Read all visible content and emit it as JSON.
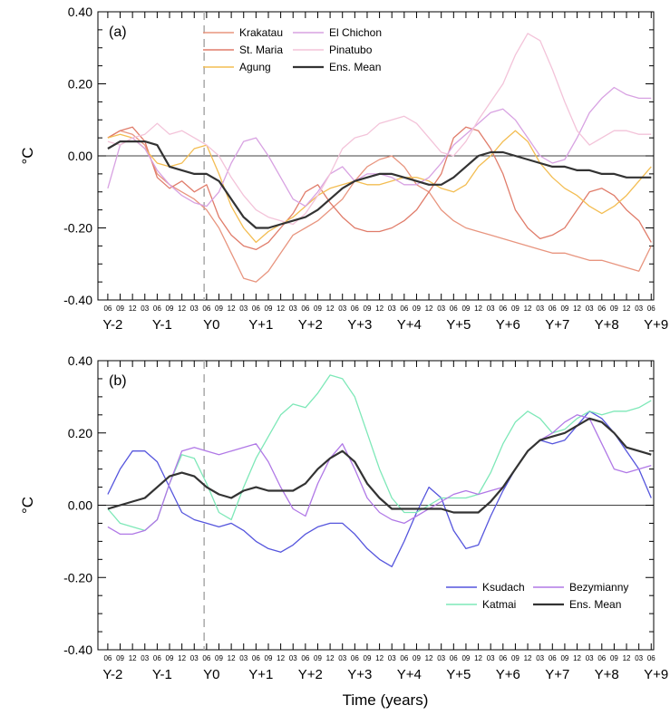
{
  "figure": {
    "xlabel": "Time (years)"
  },
  "chart_data": [
    {
      "type": "line",
      "panel_label": "(a)",
      "ylabel": "°C",
      "ylim": [
        -0.4,
        0.4
      ],
      "yticks": [
        -0.4,
        -0.2,
        0.0,
        0.2,
        0.4
      ],
      "ytick_labels": [
        "-0.40",
        "-0.20",
        "0.00",
        "0.20",
        "0.40"
      ],
      "xlim": [
        -2.2,
        9.05
      ],
      "year_labels": [
        "Y-2",
        "Y-1",
        "Y0",
        "Y+1",
        "Y+2",
        "Y+3",
        "Y+4",
        "Y+5",
        "Y+6",
        "Y+7",
        "Y+8",
        "Y+9"
      ],
      "month_tick_labels": [
        "03",
        "06",
        "09",
        "12"
      ],
      "eruption_line_x": -0.05,
      "zero_line": true,
      "legend": "top-center",
      "series": [
        {
          "name": "Krakatau",
          "color": "#e8957f",
          "x": [
            -2.0,
            -1.75,
            -1.5,
            -1.25,
            -1.0,
            -0.75,
            -0.5,
            -0.25,
            0.0,
            0.25,
            0.5,
            0.75,
            1.0,
            1.25,
            1.5,
            1.75,
            2.0,
            2.25,
            2.5,
            2.75,
            3.0,
            3.25,
            3.5,
            3.75,
            4.0,
            4.25,
            4.5,
            4.75,
            5.0,
            5.25,
            5.5,
            5.75,
            6.0,
            6.25,
            6.5,
            6.75,
            7.0,
            7.25,
            7.5,
            7.75,
            8.0,
            8.25,
            8.5,
            8.75,
            9.0
          ],
          "y": [
            0.05,
            0.07,
            0.06,
            0.03,
            -0.05,
            -0.08,
            -0.1,
            -0.12,
            -0.15,
            -0.2,
            -0.27,
            -0.34,
            -0.35,
            -0.32,
            -0.27,
            -0.22,
            -0.2,
            -0.18,
            -0.15,
            -0.12,
            -0.07,
            -0.03,
            -0.01,
            0.0,
            -0.03,
            -0.08,
            -0.1,
            -0.15,
            -0.18,
            -0.2,
            -0.21,
            -0.22,
            -0.23,
            -0.24,
            -0.25,
            -0.26,
            -0.27,
            -0.27,
            -0.28,
            -0.29,
            -0.29,
            -0.3,
            -0.31,
            -0.32,
            -0.25
          ]
        },
        {
          "name": "St. Maria",
          "color": "#e07c6a",
          "x": [
            -2.0,
            -1.75,
            -1.5,
            -1.25,
            -1.0,
            -0.75,
            -0.5,
            -0.25,
            0.0,
            0.25,
            0.5,
            0.75,
            1.0,
            1.25,
            1.5,
            1.75,
            2.0,
            2.25,
            2.5,
            2.75,
            3.0,
            3.25,
            3.5,
            3.75,
            4.0,
            4.25,
            4.5,
            4.75,
            5.0,
            5.25,
            5.5,
            5.75,
            6.0,
            6.25,
            6.5,
            6.75,
            7.0,
            7.25,
            7.5,
            7.75,
            8.0,
            8.25,
            8.5,
            8.75,
            9.0
          ],
          "y": [
            0.05,
            0.07,
            0.08,
            0.04,
            -0.06,
            -0.09,
            -0.07,
            -0.1,
            -0.08,
            -0.17,
            -0.22,
            -0.25,
            -0.26,
            -0.24,
            -0.2,
            -0.16,
            -0.1,
            -0.08,
            -0.13,
            -0.17,
            -0.2,
            -0.21,
            -0.21,
            -0.2,
            -0.18,
            -0.15,
            -0.1,
            -0.05,
            0.05,
            0.08,
            0.07,
            0.02,
            -0.05,
            -0.15,
            -0.2,
            -0.23,
            -0.22,
            -0.2,
            -0.15,
            -0.1,
            -0.09,
            -0.11,
            -0.15,
            -0.18,
            -0.24
          ]
        },
        {
          "name": "Agung",
          "color": "#f3bd52",
          "x": [
            -2.0,
            -1.75,
            -1.5,
            -1.25,
            -1.0,
            -0.75,
            -0.5,
            -0.25,
            0.0,
            0.25,
            0.5,
            0.75,
            1.0,
            1.25,
            1.5,
            1.75,
            2.0,
            2.25,
            2.5,
            2.75,
            3.0,
            3.25,
            3.5,
            3.75,
            4.0,
            4.25,
            4.5,
            4.75,
            5.0,
            5.25,
            5.5,
            5.75,
            6.0,
            6.25,
            6.5,
            6.75,
            7.0,
            7.25,
            7.5,
            7.75,
            8.0,
            8.25,
            8.5,
            8.75,
            9.0
          ],
          "y": [
            0.05,
            0.06,
            0.05,
            0.02,
            -0.02,
            -0.03,
            -0.02,
            0.02,
            0.03,
            -0.05,
            -0.14,
            -0.2,
            -0.24,
            -0.21,
            -0.19,
            -0.17,
            -0.14,
            -0.11,
            -0.09,
            -0.08,
            -0.07,
            -0.08,
            -0.08,
            -0.07,
            -0.06,
            -0.06,
            -0.07,
            -0.09,
            -0.1,
            -0.08,
            -0.03,
            0.0,
            0.04,
            0.07,
            0.04,
            -0.02,
            -0.06,
            -0.09,
            -0.11,
            -0.14,
            -0.16,
            -0.14,
            -0.11,
            -0.07,
            -0.03
          ]
        },
        {
          "name": "El Chichon",
          "color": "#d8a2e2",
          "x": [
            -2.0,
            -1.75,
            -1.5,
            -1.25,
            -1.0,
            -0.75,
            -0.5,
            -0.25,
            0.0,
            0.25,
            0.5,
            0.75,
            1.0,
            1.25,
            1.5,
            1.75,
            2.0,
            2.25,
            2.5,
            2.75,
            3.0,
            3.25,
            3.5,
            3.75,
            4.0,
            4.25,
            4.5,
            4.75,
            5.0,
            5.25,
            5.5,
            5.75,
            6.0,
            6.25,
            6.5,
            6.75,
            7.0,
            7.25,
            7.5,
            7.75,
            8.0,
            8.25,
            8.5,
            8.75,
            9.0
          ],
          "y": [
            -0.09,
            0.03,
            0.05,
            0.02,
            -0.04,
            -0.08,
            -0.11,
            -0.13,
            -0.14,
            -0.1,
            -0.02,
            0.04,
            0.05,
            0.0,
            -0.06,
            -0.12,
            -0.14,
            -0.1,
            -0.05,
            -0.03,
            -0.07,
            -0.05,
            -0.05,
            -0.06,
            -0.08,
            -0.08,
            -0.06,
            -0.02,
            0.03,
            0.06,
            0.09,
            0.12,
            0.13,
            0.1,
            0.05,
            0.0,
            -0.02,
            -0.01,
            0.05,
            0.12,
            0.16,
            0.19,
            0.17,
            0.16,
            0.16
          ]
        },
        {
          "name": "Pinatubo",
          "color": "#f3c3d9",
          "x": [
            -2.0,
            -1.75,
            -1.5,
            -1.25,
            -1.0,
            -0.75,
            -0.5,
            -0.25,
            0.0,
            0.25,
            0.5,
            0.75,
            1.0,
            1.25,
            1.5,
            1.75,
            2.0,
            2.25,
            2.5,
            2.75,
            3.0,
            3.25,
            3.5,
            3.75,
            4.0,
            4.25,
            4.5,
            4.75,
            5.0,
            5.25,
            5.5,
            5.75,
            6.0,
            6.25,
            6.5,
            6.75,
            7.0,
            7.25,
            7.5,
            7.75,
            8.0,
            8.25,
            8.5,
            8.75,
            9.0
          ],
          "y": [
            0.04,
            0.03,
            0.05,
            0.06,
            0.09,
            0.06,
            0.07,
            0.05,
            0.03,
            0.0,
            -0.06,
            -0.11,
            -0.15,
            -0.17,
            -0.18,
            -0.19,
            -0.16,
            -0.11,
            -0.05,
            0.02,
            0.05,
            0.06,
            0.09,
            0.1,
            0.11,
            0.09,
            0.05,
            0.01,
            0.0,
            0.04,
            0.1,
            0.15,
            0.2,
            0.28,
            0.34,
            0.32,
            0.24,
            0.15,
            0.07,
            0.03,
            0.05,
            0.07,
            0.07,
            0.06,
            0.06
          ]
        },
        {
          "name": "Ens. Mean",
          "color": "#333333",
          "x": [
            -2.0,
            -1.75,
            -1.5,
            -1.25,
            -1.0,
            -0.75,
            -0.5,
            -0.25,
            0.0,
            0.25,
            0.5,
            0.75,
            1.0,
            1.25,
            1.5,
            1.75,
            2.0,
            2.25,
            2.5,
            2.75,
            3.0,
            3.25,
            3.5,
            3.75,
            4.0,
            4.25,
            4.5,
            4.75,
            5.0,
            5.25,
            5.5,
            5.75,
            6.0,
            6.25,
            6.5,
            6.75,
            7.0,
            7.25,
            7.5,
            7.75,
            8.0,
            8.25,
            8.5,
            8.75,
            9.0
          ],
          "y": [
            0.02,
            0.04,
            0.04,
            0.04,
            0.03,
            -0.03,
            -0.04,
            -0.05,
            -0.05,
            -0.07,
            -0.12,
            -0.17,
            -0.2,
            -0.2,
            -0.19,
            -0.18,
            -0.17,
            -0.15,
            -0.12,
            -0.09,
            -0.07,
            -0.06,
            -0.05,
            -0.05,
            -0.06,
            -0.07,
            -0.08,
            -0.08,
            -0.06,
            -0.03,
            0.0,
            0.01,
            0.01,
            0.0,
            -0.01,
            -0.02,
            -0.03,
            -0.03,
            -0.04,
            -0.04,
            -0.05,
            -0.05,
            -0.06,
            -0.06,
            -0.06
          ]
        }
      ]
    },
    {
      "type": "line",
      "panel_label": "(b)",
      "ylabel": "°C",
      "ylim": [
        -0.4,
        0.4
      ],
      "yticks": [
        -0.4,
        -0.2,
        0.0,
        0.2,
        0.4
      ],
      "ytick_labels": [
        "-0.40",
        "-0.20",
        "0.00",
        "0.20",
        "0.40"
      ],
      "xlim": [
        -2.2,
        9.05
      ],
      "year_labels": [
        "Y-2",
        "Y-1",
        "Y0",
        "Y+1",
        "Y+2",
        "Y+3",
        "Y+4",
        "Y+5",
        "Y+6",
        "Y+7",
        "Y+8",
        "Y+9"
      ],
      "month_tick_labels": [
        "03",
        "06",
        "09",
        "12"
      ],
      "eruption_line_x": -0.05,
      "zero_line": true,
      "legend": "bottom-right",
      "series": [
        {
          "name": "Ksudach",
          "color": "#5555dd",
          "x": [
            -2.0,
            -1.75,
            -1.5,
            -1.25,
            -1.0,
            -0.75,
            -0.5,
            -0.25,
            0.0,
            0.25,
            0.5,
            0.75,
            1.0,
            1.25,
            1.5,
            1.75,
            2.0,
            2.25,
            2.5,
            2.75,
            3.0,
            3.25,
            3.5,
            3.75,
            4.0,
            4.25,
            4.5,
            4.75,
            5.0,
            5.25,
            5.5,
            5.75,
            6.0,
            6.25,
            6.5,
            6.75,
            7.0,
            7.25,
            7.5,
            7.75,
            8.0,
            8.25,
            8.5,
            8.75,
            9.0
          ],
          "y": [
            0.03,
            0.1,
            0.15,
            0.15,
            0.12,
            0.05,
            -0.02,
            -0.04,
            -0.05,
            -0.06,
            -0.05,
            -0.07,
            -0.1,
            -0.12,
            -0.13,
            -0.11,
            -0.08,
            -0.06,
            -0.05,
            -0.05,
            -0.08,
            -0.12,
            -0.15,
            -0.17,
            -0.1,
            -0.02,
            0.05,
            0.02,
            -0.07,
            -0.12,
            -0.11,
            -0.03,
            0.04,
            0.1,
            0.15,
            0.18,
            0.17,
            0.18,
            0.22,
            0.26,
            0.24,
            0.2,
            0.15,
            0.1,
            0.02
          ]
        },
        {
          "name": "Katmai",
          "color": "#7ee8b8",
          "x": [
            -2.0,
            -1.75,
            -1.5,
            -1.25,
            -1.0,
            -0.75,
            -0.5,
            -0.25,
            0.0,
            0.25,
            0.5,
            0.75,
            1.0,
            1.25,
            1.5,
            1.75,
            2.0,
            2.25,
            2.5,
            2.75,
            3.0,
            3.25,
            3.5,
            3.75,
            4.0,
            4.25,
            4.5,
            4.75,
            5.0,
            5.25,
            5.5,
            5.75,
            6.0,
            6.25,
            6.5,
            6.75,
            7.0,
            7.25,
            7.5,
            7.75,
            8.0,
            8.25,
            8.5,
            8.75,
            9.0
          ],
          "y": [
            -0.01,
            -0.05,
            -0.06,
            -0.07,
            -0.04,
            0.06,
            0.14,
            0.13,
            0.06,
            -0.02,
            -0.04,
            0.05,
            0.13,
            0.19,
            0.25,
            0.28,
            0.27,
            0.31,
            0.36,
            0.35,
            0.3,
            0.2,
            0.1,
            0.02,
            -0.02,
            -0.02,
            0.0,
            0.02,
            0.02,
            0.02,
            0.03,
            0.09,
            0.17,
            0.23,
            0.26,
            0.24,
            0.2,
            0.21,
            0.24,
            0.26,
            0.25,
            0.26,
            0.26,
            0.27,
            0.29
          ]
        },
        {
          "name": "Bezymianny",
          "color": "#b078e6",
          "x": [
            -2.0,
            -1.75,
            -1.5,
            -1.25,
            -1.0,
            -0.75,
            -0.5,
            -0.25,
            0.0,
            0.25,
            0.5,
            0.75,
            1.0,
            1.25,
            1.5,
            1.75,
            2.0,
            2.25,
            2.5,
            2.75,
            3.0,
            3.25,
            3.5,
            3.75,
            4.0,
            4.25,
            4.5,
            4.75,
            5.0,
            5.25,
            5.5,
            5.75,
            6.0,
            6.25,
            6.5,
            6.75,
            7.0,
            7.25,
            7.5,
            7.75,
            8.0,
            8.25,
            8.5,
            8.75,
            9.0
          ],
          "y": [
            -0.06,
            -0.08,
            -0.08,
            -0.07,
            -0.04,
            0.06,
            0.15,
            0.16,
            0.15,
            0.14,
            0.15,
            0.16,
            0.17,
            0.12,
            0.05,
            -0.01,
            -0.03,
            0.06,
            0.13,
            0.17,
            0.1,
            0.02,
            -0.02,
            -0.04,
            -0.05,
            -0.03,
            -0.01,
            0.01,
            0.03,
            0.04,
            0.03,
            0.04,
            0.05,
            0.1,
            0.15,
            0.18,
            0.2,
            0.23,
            0.25,
            0.24,
            0.17,
            0.1,
            0.09,
            0.1,
            0.11
          ]
        },
        {
          "name": "Ens. Mean",
          "color": "#333333",
          "x": [
            -2.0,
            -1.75,
            -1.5,
            -1.25,
            -1.0,
            -0.75,
            -0.5,
            -0.25,
            0.0,
            0.25,
            0.5,
            0.75,
            1.0,
            1.25,
            1.5,
            1.75,
            2.0,
            2.25,
            2.5,
            2.75,
            3.0,
            3.25,
            3.5,
            3.75,
            4.0,
            4.25,
            4.5,
            4.75,
            5.0,
            5.25,
            5.5,
            5.75,
            6.0,
            6.25,
            6.5,
            6.75,
            7.0,
            7.25,
            7.5,
            7.75,
            8.0,
            8.25,
            8.5,
            8.75,
            9.0
          ],
          "y": [
            -0.01,
            0.0,
            0.01,
            0.02,
            0.05,
            0.08,
            0.09,
            0.08,
            0.05,
            0.03,
            0.02,
            0.04,
            0.05,
            0.04,
            0.04,
            0.04,
            0.06,
            0.1,
            0.13,
            0.15,
            0.12,
            0.06,
            0.02,
            -0.01,
            -0.01,
            -0.01,
            -0.01,
            -0.01,
            -0.02,
            -0.02,
            -0.02,
            0.01,
            0.05,
            0.1,
            0.15,
            0.18,
            0.19,
            0.2,
            0.22,
            0.24,
            0.23,
            0.2,
            0.16,
            0.15,
            0.14
          ]
        }
      ]
    }
  ]
}
